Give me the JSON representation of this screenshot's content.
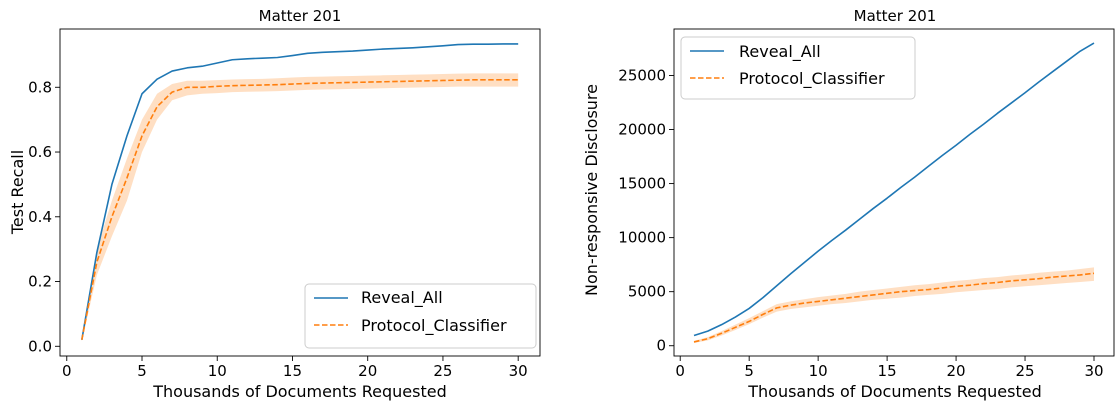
{
  "chart_data": [
    {
      "type": "line",
      "title": "Matter 201",
      "xlabel": "Thousands of Documents Requested",
      "ylabel": "Test Recall",
      "xlim": [
        -0.45,
        31.45
      ],
      "ylim": [
        -0.03,
        0.98
      ],
      "xticks": [
        0,
        5,
        10,
        15,
        20,
        25,
        30
      ],
      "yticks": [
        0.0,
        0.2,
        0.4,
        0.6,
        0.8
      ],
      "ytick_labels": [
        "0.0",
        "0.2",
        "0.4",
        "0.6",
        "0.8"
      ],
      "grid": false,
      "legend_position": "lower-right",
      "series": [
        {
          "name": "Reveal_All",
          "color": "#1f77b4",
          "style": "solid",
          "x": [
            1,
            2,
            3,
            4,
            5,
            6,
            7,
            8,
            9,
            10,
            11,
            12,
            13,
            14,
            15,
            16,
            17,
            18,
            19,
            20,
            21,
            22,
            23,
            24,
            25,
            26,
            27,
            28,
            29,
            30
          ],
          "y": [
            0.02,
            0.29,
            0.5,
            0.65,
            0.78,
            0.825,
            0.85,
            0.86,
            0.865,
            0.875,
            0.885,
            0.888,
            0.89,
            0.892,
            0.898,
            0.905,
            0.908,
            0.91,
            0.912,
            0.915,
            0.918,
            0.92,
            0.922,
            0.925,
            0.928,
            0.932,
            0.933,
            0.933,
            0.934,
            0.934
          ]
        },
        {
          "name": "Protocol_Classifier",
          "color": "#ff7f0e",
          "style": "dashed",
          "x": [
            1,
            2,
            3,
            4,
            5,
            6,
            7,
            8,
            9,
            10,
            11,
            12,
            13,
            14,
            15,
            16,
            17,
            18,
            19,
            20,
            21,
            22,
            23,
            24,
            25,
            26,
            27,
            28,
            29,
            30
          ],
          "y": [
            0.02,
            0.26,
            0.4,
            0.52,
            0.65,
            0.74,
            0.785,
            0.8,
            0.8,
            0.803,
            0.805,
            0.806,
            0.807,
            0.808,
            0.81,
            0.812,
            0.813,
            0.814,
            0.815,
            0.816,
            0.817,
            0.818,
            0.819,
            0.82,
            0.821,
            0.822,
            0.823,
            0.823,
            0.823,
            0.823
          ],
          "band_lower": [
            0.015,
            0.22,
            0.34,
            0.45,
            0.6,
            0.7,
            0.76,
            0.775,
            0.78,
            0.782,
            0.785,
            0.786,
            0.787,
            0.788,
            0.79,
            0.792,
            0.793,
            0.794,
            0.795,
            0.796,
            0.797,
            0.798,
            0.799,
            0.8,
            0.801,
            0.802,
            0.802,
            0.802,
            0.802,
            0.802
          ],
          "band_upper": [
            0.025,
            0.3,
            0.45,
            0.58,
            0.7,
            0.78,
            0.81,
            0.82,
            0.82,
            0.822,
            0.824,
            0.825,
            0.826,
            0.828,
            0.83,
            0.832,
            0.833,
            0.834,
            0.835,
            0.836,
            0.837,
            0.838,
            0.839,
            0.84,
            0.841,
            0.842,
            0.843,
            0.843,
            0.843,
            0.843
          ]
        }
      ]
    },
    {
      "type": "line",
      "title": "Matter 201",
      "xlabel": "Thousands of Documents Requested",
      "ylabel": "Non-responsive Disclosure",
      "xlim": [
        -0.45,
        31.45
      ],
      "ylim": [
        -950,
        29300
      ],
      "xticks": [
        0,
        5,
        10,
        15,
        20,
        25,
        30
      ],
      "yticks": [
        0,
        5000,
        10000,
        15000,
        20000,
        25000
      ],
      "ytick_labels": [
        "0",
        "5000",
        "10000",
        "15000",
        "20000",
        "25000"
      ],
      "grid": false,
      "legend_position": "top-left",
      "series": [
        {
          "name": "Reveal_All",
          "color": "#1f77b4",
          "style": "solid",
          "x": [
            1,
            2,
            3,
            4,
            5,
            6,
            7,
            8,
            9,
            10,
            11,
            12,
            13,
            14,
            15,
            16,
            17,
            18,
            19,
            20,
            21,
            22,
            23,
            24,
            25,
            26,
            27,
            28,
            29,
            30
          ],
          "y": [
            950,
            1350,
            1950,
            2650,
            3450,
            4450,
            5550,
            6650,
            7700,
            8750,
            9750,
            10700,
            11700,
            12700,
            13650,
            14650,
            15600,
            16600,
            17600,
            18550,
            19550,
            20500,
            21500,
            22450,
            23400,
            24400,
            25350,
            26300,
            27250,
            28000
          ]
        },
        {
          "name": "Protocol_Classifier",
          "color": "#ff7f0e",
          "style": "dashed",
          "x": [
            1,
            2,
            3,
            4,
            5,
            6,
            7,
            8,
            9,
            10,
            11,
            12,
            13,
            14,
            15,
            16,
            17,
            18,
            19,
            20,
            21,
            22,
            23,
            24,
            25,
            26,
            27,
            28,
            29,
            30
          ],
          "y": [
            350,
            650,
            1150,
            1700,
            2250,
            2900,
            3500,
            3750,
            3950,
            4100,
            4250,
            4400,
            4550,
            4700,
            4850,
            5000,
            5100,
            5200,
            5350,
            5500,
            5600,
            5750,
            5850,
            6000,
            6100,
            6200,
            6350,
            6450,
            6550,
            6700
          ],
          "band_lower": [
            250,
            500,
            950,
            1450,
            2000,
            2600,
            3150,
            3400,
            3550,
            3700,
            3850,
            3950,
            4100,
            4250,
            4350,
            4450,
            4600,
            4700,
            4800,
            4950,
            5050,
            5150,
            5250,
            5400,
            5500,
            5600,
            5700,
            5800,
            5900,
            6000
          ],
          "band_upper": [
            450,
            800,
            1350,
            1950,
            2550,
            3200,
            3850,
            4100,
            4300,
            4500,
            4650,
            4800,
            5000,
            5150,
            5300,
            5450,
            5600,
            5700,
            5850,
            6000,
            6100,
            6250,
            6350,
            6500,
            6600,
            6750,
            6850,
            6950,
            7100,
            7250
          ]
        }
      ]
    }
  ]
}
